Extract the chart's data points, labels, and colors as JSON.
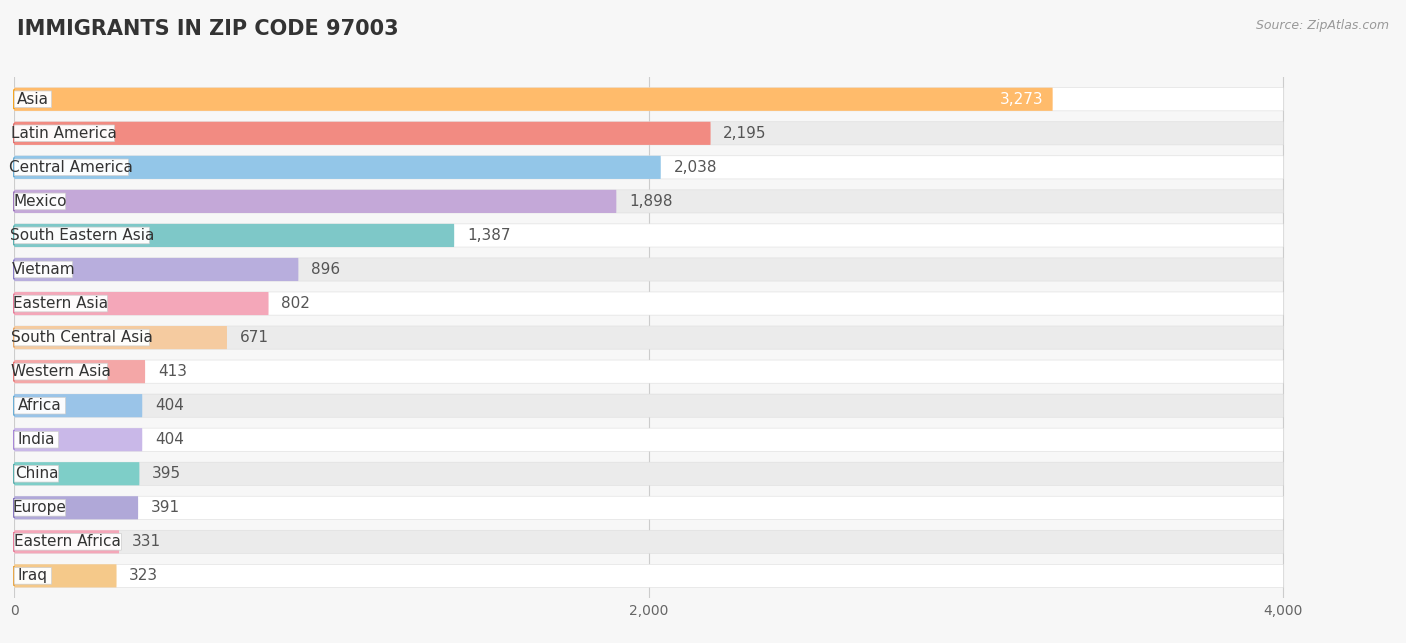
{
  "title": "Immigrants in Zip Code 97003",
  "source_text": "Source: ZipAtlas.com",
  "categories": [
    "Asia",
    "Latin America",
    "Central America",
    "Mexico",
    "South Eastern Asia",
    "Vietnam",
    "Eastern Asia",
    "South Central Asia",
    "Western Asia",
    "Africa",
    "India",
    "China",
    "Europe",
    "Eastern Africa",
    "Iraq"
  ],
  "values": [
    3273,
    2195,
    2038,
    1898,
    1387,
    896,
    802,
    671,
    413,
    404,
    404,
    395,
    391,
    331,
    323
  ],
  "bar_colors": [
    "#FFBB6B",
    "#F28B82",
    "#93C6E8",
    "#C4A8D8",
    "#7EC8C8",
    "#B8AEDD",
    "#F4A7B9",
    "#F5CBA0",
    "#F4A7A7",
    "#9AC4E8",
    "#C9B8E8",
    "#7ECEC8",
    "#B0A8D8",
    "#F4A7B9",
    "#F5C98A"
  ],
  "circle_colors": [
    "#F5A623",
    "#E07070",
    "#6BAED6",
    "#9E78BE",
    "#5BAFAF",
    "#8B7EC8",
    "#E87D9A",
    "#E8A868",
    "#E87878",
    "#6BAED6",
    "#A888D8",
    "#5BAFAF",
    "#8878C0",
    "#E87D9A",
    "#E8A84A"
  ],
  "value_inside": [
    true,
    false,
    false,
    false,
    false,
    false,
    false,
    false,
    false,
    false,
    false,
    false,
    false,
    false,
    false
  ],
  "xlim": [
    0,
    4000
  ],
  "xticks": [
    0,
    2000,
    4000
  ],
  "bg_color": "#F7F7F7",
  "row_colors_even": "#FFFFFF",
  "row_colors_odd": "#EBEBEB",
  "title_fontsize": 15,
  "label_fontsize": 11,
  "value_fontsize": 11
}
